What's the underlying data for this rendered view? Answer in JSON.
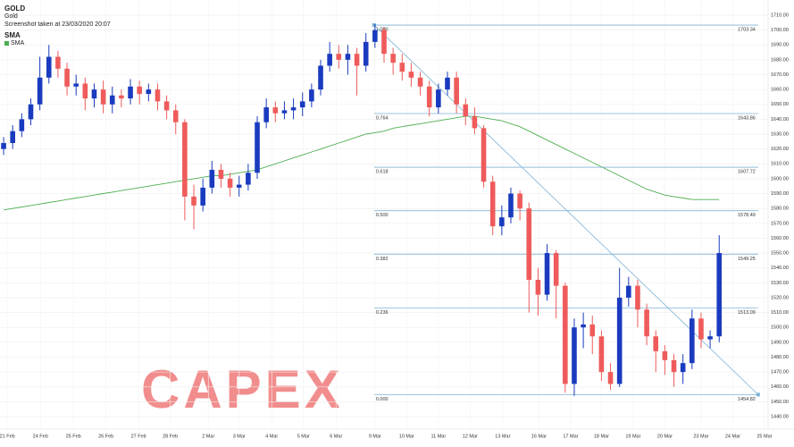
{
  "header": {
    "symbol": "GOLD",
    "name": "Gold",
    "screenshot": "Screenshot taken at 23/03/2020 20:07",
    "indicator": "SMA"
  },
  "watermark": "CAPEX",
  "chart_data": {
    "type": "candlestick",
    "up_color": "#1a3bbf",
    "down_color": "#ef5b5b",
    "xlim": [
      -0.4,
      84.4
    ],
    "xticks": [
      {
        "value": 0.4,
        "label": "21 Feb"
      },
      {
        "value": 4.06,
        "label": "24 Feb"
      },
      {
        "value": 7.7,
        "label": "25 Feb"
      },
      {
        "value": 11.3,
        "label": "26 Feb"
      },
      {
        "value": 14.9,
        "label": "27 Feb"
      },
      {
        "value": 18.4,
        "label": "28 Feb"
      },
      {
        "value": 22.6,
        "label": "2 Mar"
      },
      {
        "value": 26,
        "label": "3 Mar"
      },
      {
        "value": 29.6,
        "label": "4 Mar"
      },
      {
        "value": 33.1,
        "label": "5 Mar"
      },
      {
        "value": 36.7,
        "label": "6 Mar"
      },
      {
        "value": 41,
        "label": "9 Mar"
      },
      {
        "value": 44.5,
        "label": "10 Mar"
      },
      {
        "value": 48,
        "label": "11 Mar"
      },
      {
        "value": 51.5,
        "label": "12 Mar"
      },
      {
        "value": 55.1,
        "label": "13 Mar"
      },
      {
        "value": 59.1,
        "label": "16 Mar"
      },
      {
        "value": 62.6,
        "label": "17 Mar"
      },
      {
        "value": 66,
        "label": "18 Mar"
      },
      {
        "value": 69.5,
        "label": "19 Mar"
      },
      {
        "value": 73,
        "label": "20 Mar"
      },
      {
        "value": 77,
        "label": "23 Mar"
      },
      {
        "value": 80.5,
        "label": "24 Mar"
      },
      {
        "value": 84,
        "label": "25 Mar"
      }
    ],
    "ylim": [
      1431.6,
      1720.2
    ],
    "yticks": [
      {
        "value": 1440,
        "label": "1440.00"
      },
      {
        "value": 1450,
        "label": "1450.00"
      },
      {
        "value": 1460,
        "label": "1460.00"
      },
      {
        "value": 1470,
        "label": "1470.00"
      },
      {
        "value": 1480,
        "label": "1480.00"
      },
      {
        "value": 1490,
        "label": "1490.00"
      },
      {
        "value": 1500,
        "label": "1500.00"
      },
      {
        "value": 1510,
        "label": "1510.00"
      },
      {
        "value": 1520,
        "label": "1520.00"
      },
      {
        "value": 1530,
        "label": "1530.00"
      },
      {
        "value": 1540,
        "label": "1540.00"
      },
      {
        "value": 1550,
        "label": "1550.00"
      },
      {
        "value": 1560,
        "label": "1560.00"
      },
      {
        "value": 1570,
        "label": "1570.00"
      },
      {
        "value": 1580,
        "label": "1580.00"
      },
      {
        "value": 1590,
        "label": "1590.00"
      },
      {
        "value": 1600,
        "label": "1600.00"
      },
      {
        "value": 1610,
        "label": "1610.00"
      },
      {
        "value": 1620,
        "label": "1620.00"
      },
      {
        "value": 1630,
        "label": "1630.00"
      },
      {
        "value": 1640,
        "label": "1640.00"
      },
      {
        "value": 1650,
        "label": "1650.00"
      },
      {
        "value": 1660,
        "label": "1660.00"
      },
      {
        "value": 1670,
        "label": "1670.00"
      },
      {
        "value": 1680,
        "label": "1680.00"
      },
      {
        "value": 1690,
        "label": "1690.00"
      },
      {
        "value": 1700,
        "label": "1700.00"
      },
      {
        "value": 1710,
        "label": "1710.00"
      }
    ],
    "grid": true,
    "open": [
      1620,
      1624,
      1632,
      1640,
      1650,
      1668,
      1682,
      1674,
      1662,
      1664,
      1654,
      1660,
      1650,
      1656,
      1654,
      1662,
      1657,
      1660,
      1652,
      1646,
      1638,
      1588,
      1582,
      1594,
      1606,
      1600,
      1594,
      1596,
      1604,
      1638,
      1648,
      1644,
      1646,
      1648,
      1652,
      1660,
      1676,
      1684,
      1680,
      1684,
      1676,
      1692,
      1700,
      1684,
      1678,
      1672,
      1668,
      1662,
      1648,
      1660,
      1668,
      1650,
      1642,
      1634,
      1598,
      1568,
      1574,
      1590,
      1580,
      1532,
      1522,
      1550,
      1528,
      1462,
      1500,
      1502,
      1494,
      1470,
      1462,
      1520,
      1528,
      1512,
      1494,
      1484,
      1478,
      1470,
      1476,
      1506,
      1492,
      1494
    ],
    "high": [
      1628,
      1636,
      1644,
      1654,
      1682,
      1690,
      1686,
      1678,
      1670,
      1668,
      1664,
      1666,
      1662,
      1660,
      1667,
      1666,
      1664,
      1664,
      1656,
      1650,
      1640,
      1596,
      1600,
      1612,
      1610,
      1604,
      1602,
      1610,
      1642,
      1654,
      1652,
      1652,
      1654,
      1658,
      1664,
      1680,
      1692,
      1690,
      1690,
      1688,
      1698,
      1704,
      1702,
      1688,
      1684,
      1678,
      1672,
      1666,
      1664,
      1672,
      1672,
      1654,
      1648,
      1636,
      1602,
      1582,
      1594,
      1592,
      1584,
      1540,
      1556,
      1552,
      1530,
      1506,
      1510,
      1508,
      1498,
      1476,
      1540,
      1534,
      1532,
      1516,
      1498,
      1488,
      1482,
      1482,
      1512,
      1510,
      1498,
      1562
    ],
    "low": [
      1616,
      1620,
      1628,
      1636,
      1646,
      1664,
      1668,
      1656,
      1656,
      1646,
      1648,
      1644,
      1644,
      1648,
      1650,
      1650,
      1652,
      1646,
      1640,
      1630,
      1572,
      1566,
      1578,
      1590,
      1594,
      1588,
      1588,
      1592,
      1600,
      1634,
      1638,
      1640,
      1640,
      1642,
      1648,
      1656,
      1672,
      1674,
      1670,
      1656,
      1672,
      1688,
      1678,
      1670,
      1666,
      1662,
      1656,
      1642,
      1644,
      1656,
      1644,
      1636,
      1630,
      1594,
      1562,
      1562,
      1570,
      1572,
      1510,
      1508,
      1518,
      1506,
      1456,
      1454,
      1486,
      1482,
      1464,
      1458,
      1460,
      1514,
      1500,
      1488,
      1470,
      1468,
      1460,
      1462,
      1472,
      1486,
      1486,
      1490
    ],
    "close": [
      1624,
      1632,
      1640,
      1650,
      1668,
      1682,
      1674,
      1662,
      1664,
      1654,
      1660,
      1650,
      1656,
      1654,
      1662,
      1657,
      1660,
      1652,
      1646,
      1638,
      1588,
      1582,
      1594,
      1606,
      1600,
      1594,
      1596,
      1604,
      1638,
      1648,
      1644,
      1646,
      1648,
      1652,
      1660,
      1676,
      1684,
      1680,
      1684,
      1676,
      1692,
      1700,
      1684,
      1678,
      1672,
      1668,
      1662,
      1648,
      1660,
      1668,
      1650,
      1642,
      1634,
      1598,
      1568,
      1574,
      1590,
      1580,
      1532,
      1522,
      1550,
      1528,
      1462,
      1500,
      1502,
      1494,
      1470,
      1462,
      1520,
      1528,
      1512,
      1494,
      1484,
      1478,
      1470,
      1476,
      1506,
      1492,
      1494,
      1550
    ],
    "series": [
      {
        "name": "SMA",
        "color": "#4caf50",
        "values": [
          1579,
          1580,
          1581,
          1582,
          1583,
          1584,
          1585,
          1586,
          1587,
          1588,
          1589,
          1590,
          1591,
          1592,
          1593,
          1594,
          1595,
          1596,
          1597,
          1598,
          1599,
          1600,
          1601,
          1602,
          1602,
          1603,
          1604,
          1605,
          1606,
          1608,
          1610,
          1612,
          1614,
          1616,
          1618,
          1620,
          1622,
          1624,
          1626,
          1628,
          1630,
          1631,
          1632,
          1634,
          1635,
          1636,
          1637,
          1638,
          1639,
          1640,
          1641,
          1642,
          1642,
          1641,
          1640,
          1639,
          1637,
          1635,
          1632,
          1629,
          1626,
          1623,
          1620,
          1617,
          1614,
          1611,
          1608,
          1605,
          1602,
          1599,
          1596,
          1593,
          1591,
          1589,
          1588,
          1587,
          1586,
          1586,
          1586,
          1586
        ]
      }
    ],
    "fibonacci": {
      "color": "#7fb3d5",
      "x_range": [
        40.9,
        83.3
      ],
      "levels": [
        {
          "ratio": "1.000",
          "price": 1703.34
        },
        {
          "ratio": "0.764",
          "price": 1643.86
        },
        {
          "ratio": "0.618",
          "price": 1607.72
        },
        {
          "ratio": "0.500",
          "price": 1578.49
        },
        {
          "ratio": "0.382",
          "price": 1549.25
        },
        {
          "ratio": "0.236",
          "price": 1513.09
        },
        {
          "ratio": "0.000",
          "price": 1454.82
        }
      ]
    }
  }
}
